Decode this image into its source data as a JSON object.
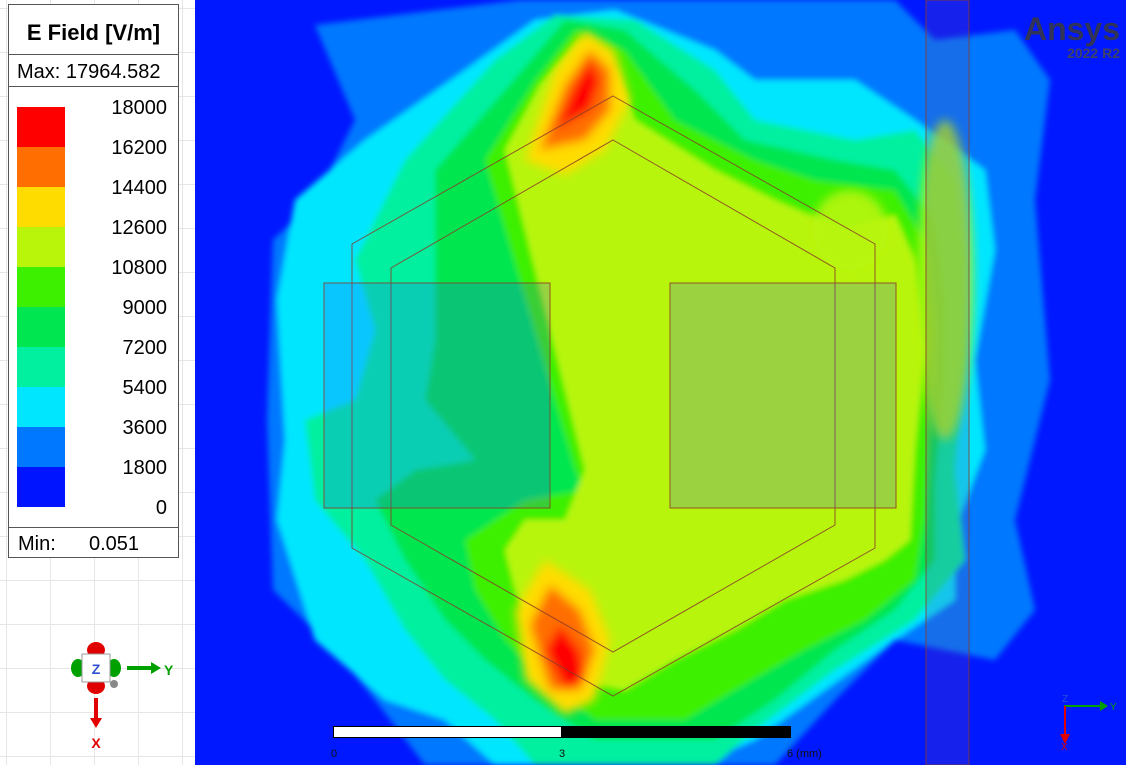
{
  "legend": {
    "title": "E Field [V/m]",
    "max_label": "Max: 17964.582",
    "min_label": "Min:",
    "min_value": "0.051",
    "ticks": [
      "18000",
      "16200",
      "14400",
      "12600",
      "10800",
      "9000",
      "7200",
      "5400",
      "3600",
      "1800",
      "0"
    ],
    "colors": [
      "#ff0000",
      "#ff6e00",
      "#ffdc00",
      "#b8f50a",
      "#3cf000",
      "#00e650",
      "#00f0a0",
      "#00e6ff",
      "#0078ff",
      "#0014ff"
    ]
  },
  "triad": {
    "z": "Z",
    "y": "Y",
    "x": "X"
  },
  "watermark": {
    "brand": "Ansys",
    "version": "2022 R2"
  },
  "scalebar": {
    "start": "0",
    "mid": "3",
    "end": "6 (mm)"
  },
  "mini_triad": {
    "z": "Z",
    "y": "Y",
    "x": "X"
  }
}
